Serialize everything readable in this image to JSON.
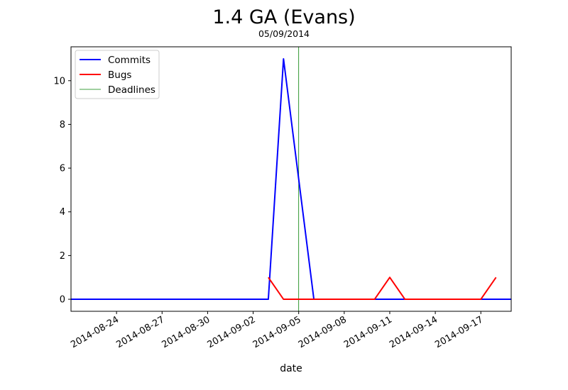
{
  "chart_data": {
    "type": "line",
    "title": "1.4 GA (Evans)",
    "subtitle": "05/09/2014",
    "xlabel": "date",
    "ylabel": "",
    "xlim": [
      "2014-08-21",
      "2014-09-19"
    ],
    "ylim": [
      -0.55,
      11.55
    ],
    "x_ticks": [
      "2014-08-24",
      "2014-08-27",
      "2014-08-30",
      "2014-09-02",
      "2014-09-05",
      "2014-09-08",
      "2014-09-11",
      "2014-09-14",
      "2014-09-17"
    ],
    "y_ticks": [
      0,
      2,
      4,
      6,
      8,
      10
    ],
    "grid": false,
    "legend_position": "top-left",
    "series": [
      {
        "name": "Commits",
        "color": "#0000ff",
        "x": [
          "2014-08-21",
          "2014-09-03",
          "2014-09-04",
          "2014-09-05",
          "2014-09-06",
          "2014-09-19"
        ],
        "y": [
          0,
          0,
          11,
          5.5,
          0,
          0
        ]
      },
      {
        "name": "Bugs",
        "color": "#ff0000",
        "x": [
          "2014-09-03",
          "2014-09-04",
          "2014-09-10",
          "2014-09-11",
          "2014-09-12",
          "2014-09-17",
          "2014-09-18"
        ],
        "y": [
          1,
          0,
          0,
          1,
          0,
          0,
          1
        ]
      }
    ],
    "deadlines": {
      "name": "Deadlines",
      "color": "#008000",
      "dates": [
        "2014-09-05"
      ]
    }
  }
}
